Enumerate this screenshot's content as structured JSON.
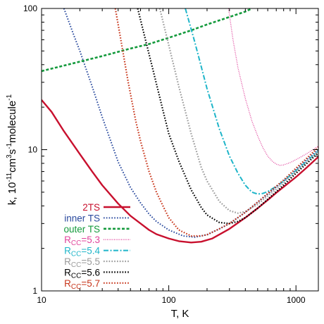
{
  "chart_data": {
    "type": "line",
    "xlabel": "T, K",
    "ylabel": "k, 10-11cm3s-1molecule-1",
    "xscale": "log",
    "yscale": "log",
    "xlim": [
      10,
      1500
    ],
    "ylim": [
      1,
      100
    ],
    "xticks": [
      {
        "value": 10,
        "label": "10"
      },
      {
        "value": 100,
        "label": "100"
      },
      {
        "value": 1000,
        "label": "1000"
      }
    ],
    "yticks": [
      {
        "value": 1,
        "label": "1"
      },
      {
        "value": 10,
        "label": "10"
      },
      {
        "value": 100,
        "label": "100"
      }
    ],
    "legend_position": "bottom-left",
    "series": [
      {
        "name": "2TS",
        "name_main": "2TS",
        "name_sub": "",
        "name_rest": "",
        "color": "#c8102e",
        "dash": "",
        "width": 2.4,
        "points": [
          [
            10,
            22.5
          ],
          [
            12,
            18.5
          ],
          [
            15,
            13.5
          ],
          [
            20,
            9.3
          ],
          [
            25,
            7.0
          ],
          [
            30,
            5.6
          ],
          [
            40,
            4.15
          ],
          [
            50,
            3.4
          ],
          [
            60,
            3.0
          ],
          [
            70,
            2.7
          ],
          [
            80,
            2.52
          ],
          [
            100,
            2.35
          ],
          [
            120,
            2.25
          ],
          [
            150,
            2.2
          ],
          [
            180,
            2.23
          ],
          [
            220,
            2.35
          ],
          [
            300,
            2.75
          ],
          [
            400,
            3.3
          ],
          [
            500,
            3.85
          ],
          [
            600,
            4.4
          ],
          [
            700,
            4.95
          ],
          [
            800,
            5.45
          ],
          [
            1000,
            6.4
          ],
          [
            1200,
            7.4
          ],
          [
            1500,
            8.9
          ]
        ]
      },
      {
        "name": "inner TS",
        "name_main": "inner TS",
        "name_sub": "",
        "name_rest": "",
        "color": "#2a4a9e",
        "dash": "1.6,2.2",
        "width": 2.0,
        "points": [
          [
            15,
            100
          ],
          [
            18,
            64
          ],
          [
            20,
            50
          ],
          [
            25,
            28
          ],
          [
            30,
            17
          ],
          [
            35,
            11.5
          ],
          [
            40,
            8.2
          ],
          [
            50,
            5.4
          ],
          [
            60,
            4.2
          ],
          [
            70,
            3.5
          ],
          [
            80,
            3.1
          ],
          [
            100,
            2.7
          ],
          [
            130,
            2.45
          ],
          [
            160,
            2.4
          ],
          [
            200,
            2.5
          ],
          [
            250,
            2.75
          ],
          [
            300,
            3.0
          ],
          [
            400,
            3.6
          ],
          [
            500,
            4.25
          ],
          [
            600,
            4.85
          ],
          [
            800,
            6.0
          ],
          [
            1000,
            7.2
          ],
          [
            1200,
            8.4
          ],
          [
            1500,
            10.0
          ]
        ]
      },
      {
        "name": "outer TS",
        "name_main": "outer TS",
        "name_sub": "",
        "name_rest": "",
        "color": "#149a3c",
        "dash": "4,2.5",
        "width": 2.6,
        "points": [
          [
            10,
            36
          ],
          [
            20,
            42
          ],
          [
            30,
            46
          ],
          [
            50,
            52
          ],
          [
            70,
            56
          ],
          [
            100,
            62
          ],
          [
            150,
            70
          ],
          [
            200,
            77
          ],
          [
            300,
            87
          ],
          [
            400,
            95
          ],
          [
            450,
            100
          ]
        ]
      },
      {
        "name": "RCC=5.3",
        "name_main": "R",
        "name_sub": "CC",
        "name_rest": "=5.3",
        "color": "#e0449c",
        "dash": "1,1.5",
        "width": 1.3,
        "points": [
          [
            295,
            100
          ],
          [
            320,
            60
          ],
          [
            350,
            38
          ],
          [
            400,
            23
          ],
          [
            450,
            16
          ],
          [
            500,
            12.5
          ],
          [
            550,
            10.3
          ],
          [
            600,
            9.0
          ],
          [
            650,
            8.3
          ],
          [
            700,
            7.9
          ],
          [
            750,
            7.75
          ],
          [
            800,
            7.8
          ],
          [
            900,
            8.1
          ],
          [
            1000,
            8.5
          ],
          [
            1200,
            9.3
          ],
          [
            1500,
            10.6
          ]
        ]
      },
      {
        "name": "RCC=5.4",
        "name_main": "R",
        "name_sub": "CC",
        "name_rest": "=5.4",
        "color": "#1fb5c9",
        "dash": "7,2.5,2,2.5",
        "width": 2.0,
        "points": [
          [
            135,
            100
          ],
          [
            160,
            58
          ],
          [
            200,
            27
          ],
          [
            250,
            14
          ],
          [
            300,
            9.0
          ],
          [
            350,
            6.8
          ],
          [
            400,
            5.6
          ],
          [
            450,
            5.0
          ],
          [
            500,
            4.85
          ],
          [
            550,
            4.9
          ],
          [
            600,
            5.05
          ],
          [
            700,
            5.5
          ],
          [
            800,
            6.0
          ],
          [
            1000,
            7.1
          ],
          [
            1200,
            8.2
          ],
          [
            1500,
            9.8
          ]
        ]
      },
      {
        "name": "RCC=5.5",
        "name_main": "R",
        "name_sub": "CC",
        "name_rest": "=5.5",
        "color": "#9a9a9a",
        "dash": "1.6,2.2",
        "width": 2.2,
        "points": [
          [
            85,
            100
          ],
          [
            100,
            55
          ],
          [
            120,
            28
          ],
          [
            150,
            13
          ],
          [
            180,
            7.5
          ],
          [
            200,
            6.0
          ],
          [
            250,
            4.3
          ],
          [
            300,
            3.7
          ],
          [
            350,
            3.55
          ],
          [
            400,
            3.65
          ],
          [
            500,
            4.1
          ],
          [
            600,
            4.7
          ],
          [
            800,
            5.8
          ],
          [
            1000,
            7.0
          ],
          [
            1200,
            8.1
          ],
          [
            1500,
            9.7
          ]
        ]
      },
      {
        "name": "RCC=5.6",
        "name_main": "R",
        "name_sub": "CC",
        "name_rest": "=5.6",
        "color": "#000000",
        "dash": "1.6,2.2",
        "width": 2.2,
        "points": [
          [
            57,
            100
          ],
          [
            65,
            62
          ],
          [
            75,
            37
          ],
          [
            90,
            19
          ],
          [
            100,
            13
          ],
          [
            120,
            8.3
          ],
          [
            150,
            5.2
          ],
          [
            180,
            3.9
          ],
          [
            200,
            3.45
          ],
          [
            250,
            3.05
          ],
          [
            300,
            3.0
          ],
          [
            350,
            3.1
          ],
          [
            400,
            3.3
          ],
          [
            500,
            3.85
          ],
          [
            600,
            4.45
          ],
          [
            800,
            5.6
          ],
          [
            1000,
            6.8
          ],
          [
            1200,
            7.9
          ],
          [
            1500,
            9.5
          ]
        ]
      },
      {
        "name": "RCC=5.7",
        "name_main": "R",
        "name_sub": "CC",
        "name_rest": "=5.7",
        "color": "#c8361b",
        "dash": "1.6,2.2",
        "width": 2.2,
        "points": [
          [
            38,
            100
          ],
          [
            42,
            60
          ],
          [
            48,
            30
          ],
          [
            55,
            16
          ],
          [
            60,
            11.5
          ],
          [
            70,
            7.0
          ],
          [
            80,
            5.0
          ],
          [
            90,
            4.0
          ],
          [
            100,
            3.3
          ],
          [
            120,
            2.7
          ],
          [
            150,
            2.45
          ],
          [
            180,
            2.45
          ],
          [
            200,
            2.5
          ],
          [
            250,
            2.75
          ],
          [
            300,
            3.0
          ],
          [
            400,
            3.6
          ],
          [
            500,
            4.25
          ],
          [
            600,
            4.9
          ],
          [
            800,
            6.1
          ],
          [
            1000,
            7.4
          ],
          [
            1200,
            8.6
          ],
          [
            1500,
            10.4
          ]
        ]
      }
    ]
  }
}
